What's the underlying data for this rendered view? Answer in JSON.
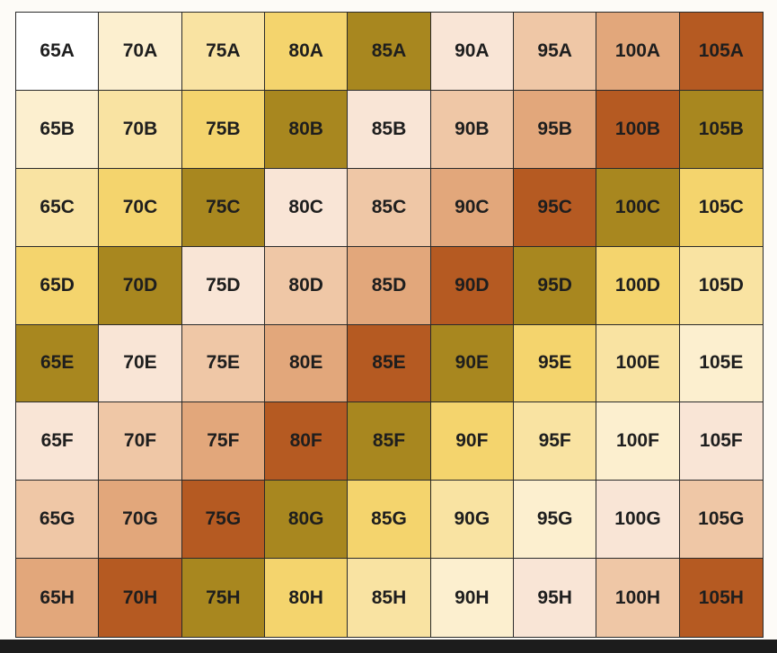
{
  "table": {
    "rows": [
      [
        "65A",
        "70A",
        "75A",
        "80A",
        "85A",
        "90A",
        "95A",
        "100A",
        "105A"
      ],
      [
        "65B",
        "70B",
        "75B",
        "80B",
        "85B",
        "90B",
        "95B",
        "100B",
        "105B"
      ],
      [
        "65C",
        "70C",
        "75C",
        "80C",
        "85C",
        "90C",
        "95C",
        "100C",
        "105C"
      ],
      [
        "65D",
        "70D",
        "75D",
        "80D",
        "85D",
        "90D",
        "95D",
        "100D",
        "105D"
      ],
      [
        "65E",
        "70E",
        "75E",
        "80E",
        "85E",
        "90E",
        "95E",
        "100E",
        "105E"
      ],
      [
        "65F",
        "70F",
        "75F",
        "80F",
        "85F",
        "90F",
        "95F",
        "100F",
        "105F"
      ],
      [
        "65G",
        "70G",
        "75G",
        "80G",
        "85G",
        "90G",
        "95G",
        "100G",
        "105G"
      ],
      [
        "65H",
        "70H",
        "75H",
        "80H",
        "85H",
        "90H",
        "95H",
        "100H",
        "105H"
      ]
    ]
  }
}
